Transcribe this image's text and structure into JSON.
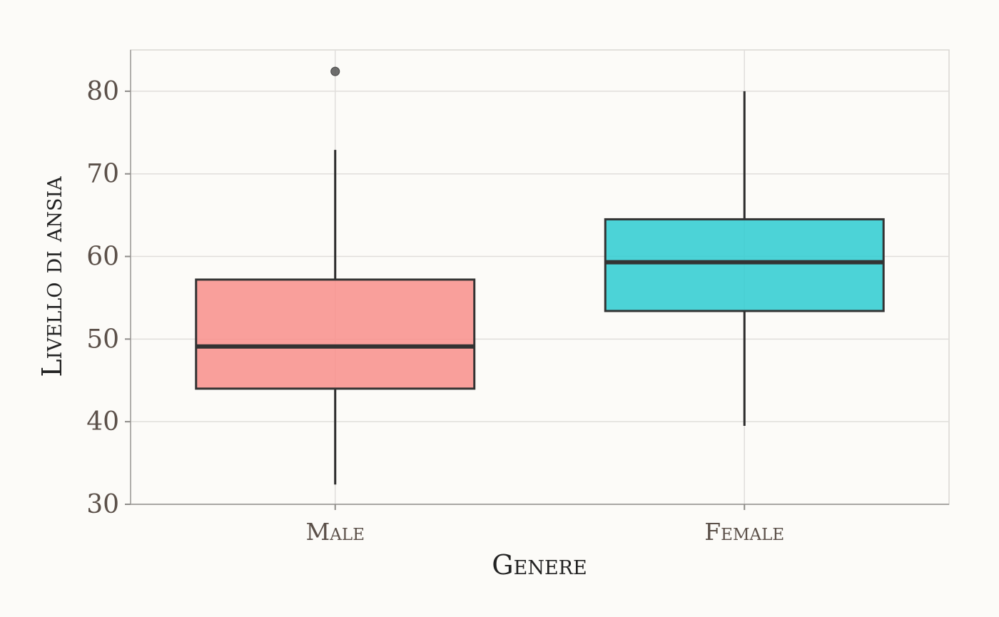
{
  "chart_data": {
    "type": "boxplot",
    "title": "",
    "xlabel": "Genere",
    "ylabel": "Livello di ansia",
    "ylim": [
      30,
      85
    ],
    "yticks": [
      30,
      40,
      50,
      60,
      70,
      80
    ],
    "categories": [
      "Male",
      "Female"
    ],
    "boxes": [
      {
        "category": "Male",
        "whisker_low": 32.4,
        "q1": 44.0,
        "median": 49.1,
        "q3": 57.2,
        "whisker_high": 72.9,
        "outliers": [
          82.4
        ],
        "color": "#f8928d"
      },
      {
        "category": "Female",
        "whisker_low": 39.5,
        "q1": 53.4,
        "median": 59.3,
        "q3": 64.5,
        "whisker_high": 80.0,
        "outliers": [],
        "color": "#33cdd1"
      }
    ],
    "grid": true,
    "legend": "none"
  }
}
